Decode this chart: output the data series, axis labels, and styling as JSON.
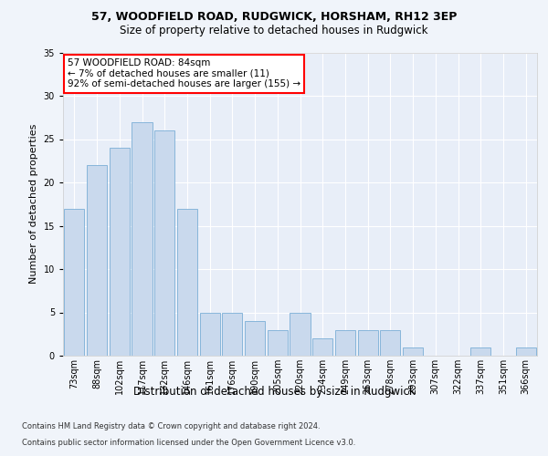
{
  "title1": "57, WOODFIELD ROAD, RUDGWICK, HORSHAM, RH12 3EP",
  "title2": "Size of property relative to detached houses in Rudgwick",
  "xlabel": "Distribution of detached houses by size in Rudgwick",
  "ylabel": "Number of detached properties",
  "bar_labels": [
    "73sqm",
    "88sqm",
    "102sqm",
    "117sqm",
    "132sqm",
    "146sqm",
    "161sqm",
    "176sqm",
    "190sqm",
    "205sqm",
    "220sqm",
    "234sqm",
    "249sqm",
    "263sqm",
    "278sqm",
    "293sqm",
    "307sqm",
    "322sqm",
    "337sqm",
    "351sqm",
    "366sqm"
  ],
  "bar_values": [
    17,
    22,
    24,
    27,
    26,
    17,
    5,
    5,
    4,
    3,
    5,
    2,
    3,
    3,
    3,
    1,
    0,
    0,
    1,
    0,
    1
  ],
  "bar_color": "#c9d9ed",
  "bar_edge_color": "#7aaed6",
  "annotation_text": "57 WOODFIELD ROAD: 84sqm\n← 7% of detached houses are smaller (11)\n92% of semi-detached houses are larger (155) →",
  "annotation_box_color": "white",
  "annotation_box_edge_color": "red",
  "ylim": [
    0,
    35
  ],
  "yticks": [
    0,
    5,
    10,
    15,
    20,
    25,
    30,
    35
  ],
  "footer1": "Contains HM Land Registry data © Crown copyright and database right 2024.",
  "footer2": "Contains public sector information licensed under the Open Government Licence v3.0.",
  "bg_color": "#f0f4fa",
  "axes_bg_color": "#e8eef8",
  "grid_color": "#ffffff",
  "title1_fontsize": 9,
  "title2_fontsize": 8.5,
  "ylabel_fontsize": 8,
  "xlabel_fontsize": 8.5,
  "tick_fontsize": 7,
  "footer_fontsize": 6,
  "ann_fontsize": 7.5
}
